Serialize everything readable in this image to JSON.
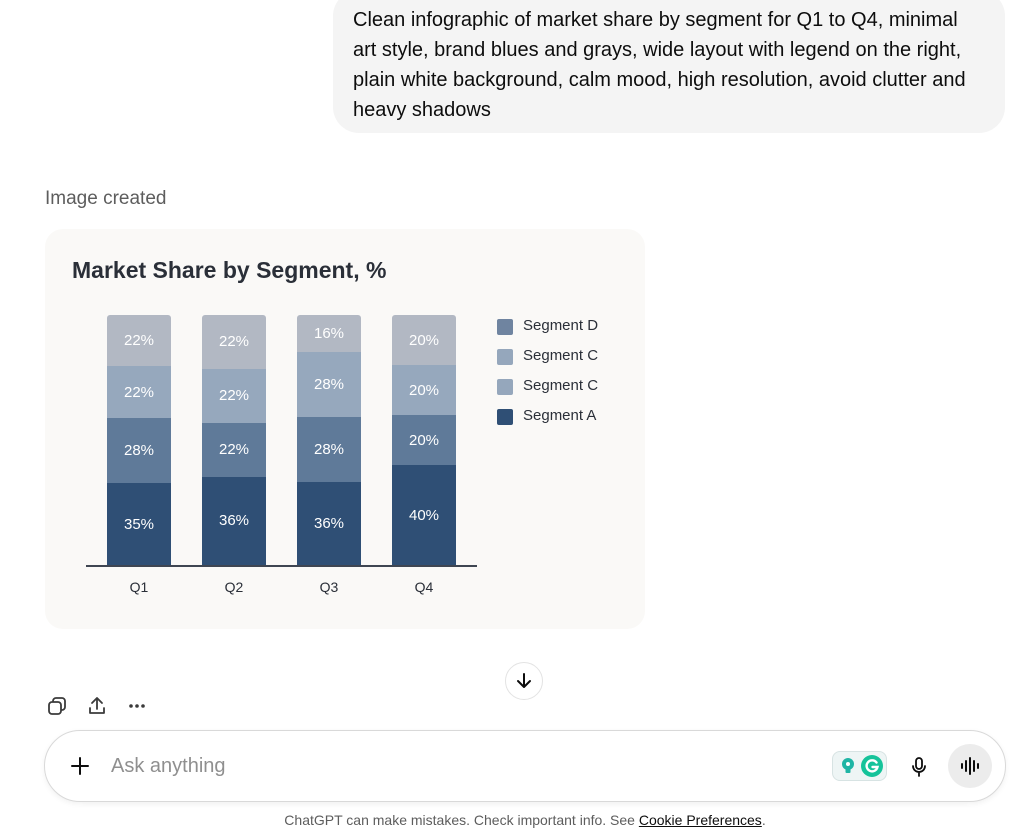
{
  "conversation": {
    "user_prompt_lines": [
      "Clean infographic of market share by segment for Q1 to Q4, minimal",
      "art style, brand blues and grays, wide layout with legend on the right,",
      "plain white background, calm mood, high resolution, avoid clutter and",
      "heavy shadows"
    ],
    "image_status": "Image created"
  },
  "chart_data": {
    "type": "bar",
    "stacked": true,
    "title": "Market Share by Segment, %",
    "categories": [
      "Q1",
      "Q2",
      "Q3",
      "Q4"
    ],
    "series": [
      {
        "name": "Segment A",
        "values": [
          35,
          36,
          36,
          40
        ],
        "labels": [
          "35%",
          "36%",
          "36%",
          "40%"
        ],
        "color": "#2f4f75"
      },
      {
        "name": "",
        "values": [
          28,
          22,
          28,
          20
        ],
        "labels": [
          "28%",
          "22%",
          "28%",
          "20%"
        ],
        "color": "#5f7a99"
      },
      {
        "name": "Segment C",
        "values": [
          22,
          22,
          28,
          20
        ],
        "labels": [
          "22%",
          "22%",
          "28%",
          "20%"
        ],
        "color": "#96a8bd"
      },
      {
        "name": "Segment D",
        "values": [
          22,
          22,
          16,
          20
        ],
        "labels": [
          "22%",
          "22%",
          "16%",
          "20%"
        ],
        "color": "#b2b8c3"
      }
    ],
    "legend": {
      "placement": "right",
      "items": [
        {
          "label": "Segment D",
          "color": "#6f84a0"
        },
        {
          "label": "Segment C",
          "color": "#95a7bc"
        },
        {
          "label": "Segment C",
          "color": "#95a7bc"
        },
        {
          "label": "Segment A",
          "color": "#2f4f75"
        }
      ]
    },
    "grid": false
  },
  "actions": {
    "copy_icon": "copy-icon",
    "share_icon": "share-icon",
    "more_icon": "more-icon",
    "scroll_icon": "arrow-down-icon"
  },
  "composer": {
    "placeholder": "Ask anything",
    "plus_icon": "plus-icon",
    "mic_icon": "mic-icon",
    "voice_icon": "voice-mode-icon"
  },
  "footer": {
    "text": "ChatGPT can make mistakes. Check important info. See",
    "link": "Cookie Preferences",
    "end": "."
  }
}
